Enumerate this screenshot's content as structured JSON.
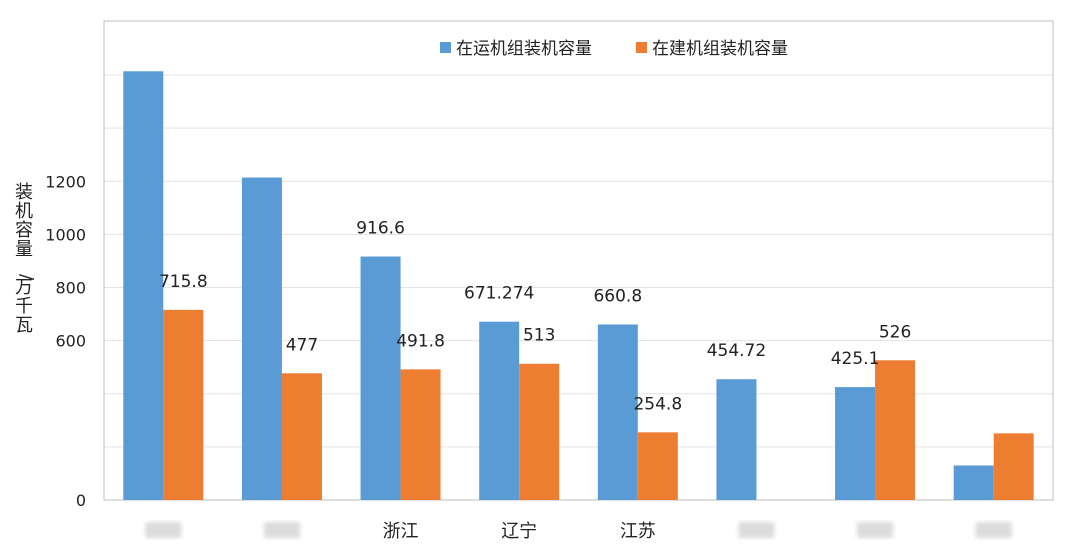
{
  "chart_data": {
    "type": "bar",
    "title": "",
    "xlabel": "",
    "ylabel": "装机容量/万千瓦",
    "ylim": [
      0,
      1600
    ],
    "yticks_labeled": [
      "0",
      "600",
      "800",
      "1000",
      "1200"
    ],
    "y_gridlines": [
      0,
      200,
      400,
      600,
      800,
      1000,
      1200,
      1400,
      1600
    ],
    "grid": true,
    "legend_position": "top-center",
    "categories": [
      "",
      "",
      "浙江",
      "辽宁",
      "江苏",
      "",
      "",
      ""
    ],
    "series": [
      {
        "name": "在运机组装机容量",
        "color": "#5b9bd5",
        "values": [
          1614,
          1214,
          916.6,
          671.274,
          660.8,
          454.72,
          425.1,
          130
        ],
        "labels": [
          "",
          "",
          "916.6",
          "671.274",
          "660.8",
          "454.72",
          "425.1",
          ""
        ]
      },
      {
        "name": "在建机组装机容量",
        "color": "#ed7d31",
        "values": [
          715.8,
          477,
          491.8,
          513,
          254.8,
          0,
          526,
          251
        ],
        "labels": [
          "715.8",
          "477",
          "491.8",
          "513",
          "254.8",
          "",
          "526",
          ""
        ]
      }
    ]
  }
}
